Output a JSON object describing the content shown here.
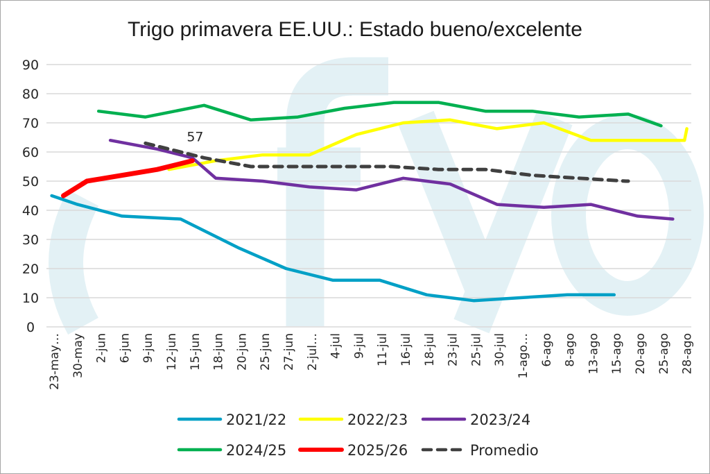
{
  "chart_data": {
    "type": "line",
    "title": "Trigo primavera EE.UU.: Estado bueno/excelente",
    "xlabel": "",
    "ylabel": "",
    "ylim": [
      0,
      90
    ],
    "yticks": [
      0,
      10,
      20,
      30,
      40,
      50,
      60,
      70,
      80,
      90
    ],
    "grid": true,
    "legend_position": "bottom",
    "categories": [
      "23-may…",
      "30-may",
      "2-jun",
      "6-jun",
      "9-jun",
      "12-jun",
      "15-jun",
      "18-jun",
      "20-jun",
      "25-jun",
      "27-jun",
      "2-jul…",
      "4-jul",
      "9-jul",
      "11-jul",
      "16-jul",
      "18-jul",
      "23-jul",
      "25-jul",
      "30-jul",
      "1-ago…",
      "6-ago",
      "8-ago",
      "13-ago",
      "15-ago",
      "20-ago",
      "25-ago",
      "28-ago"
    ],
    "x_note": "series x values are positions along the category axis (category index units)",
    "series": [
      {
        "name": "2021/22",
        "color": "#00a0c6",
        "dash": false,
        "x": [
          -0.1,
          1.0,
          2.9,
          5.4,
          7.9,
          9.9,
          11.9,
          13.9,
          15.9,
          17.9,
          19.9,
          21.9,
          23.9
        ],
        "values": [
          45,
          42,
          38,
          37,
          27,
          20,
          16,
          16,
          11,
          9,
          10,
          11,
          11
        ]
      },
      {
        "name": "2022/23",
        "color": "#ffff00",
        "dash": false,
        "x": [
          4.9,
          6.9,
          8.9,
          10.9,
          12.9,
          14.9,
          16.9,
          18.9,
          20.9,
          22.9,
          24.9,
          26.9,
          27.0
        ],
        "values": [
          54,
          57,
          59,
          59,
          66,
          70,
          71,
          68,
          70,
          64,
          64,
          64,
          68
        ]
      },
      {
        "name": "2023/24",
        "color": "#7030a0",
        "dash": false,
        "x": [
          2.4,
          4.4,
          5.9,
          6.9,
          8.9,
          10.9,
          12.9,
          14.9,
          16.9,
          18.9,
          20.9,
          22.9,
          24.9,
          26.4
        ],
        "values": [
          64,
          61,
          58,
          51,
          50,
          48,
          47,
          51,
          49,
          42,
          41,
          42,
          38,
          37
        ]
      },
      {
        "name": "2024/25",
        "color": "#00b050",
        "dash": false,
        "x": [
          1.9,
          3.9,
          6.4,
          8.4,
          10.4,
          12.4,
          14.5,
          16.4,
          18.4,
          20.4,
          22.4,
          24.5,
          25.9
        ],
        "values": [
          74,
          72,
          76,
          71,
          72,
          75,
          77,
          77,
          74,
          74,
          72,
          73,
          69
        ]
      },
      {
        "name": "2025/26",
        "color": "#ff0000",
        "dash": false,
        "x": [
          0.4,
          1.4,
          4.4,
          5.9
        ],
        "values": [
          45,
          50,
          54,
          57
        ]
      },
      {
        "name": "Promedio",
        "color": "#404040",
        "dash": true,
        "x": [
          3.9,
          6.4,
          8.4,
          10.4,
          12.4,
          14.4,
          16.4,
          18.4,
          20.4,
          22.4,
          24.4,
          24.5
        ],
        "values": [
          63,
          58,
          55,
          55,
          55,
          55,
          54,
          54,
          52,
          51,
          50,
          50
        ]
      }
    ],
    "annotations": [
      {
        "text": "57",
        "series": "2025/26",
        "x": 5.9,
        "value": 57
      }
    ]
  }
}
